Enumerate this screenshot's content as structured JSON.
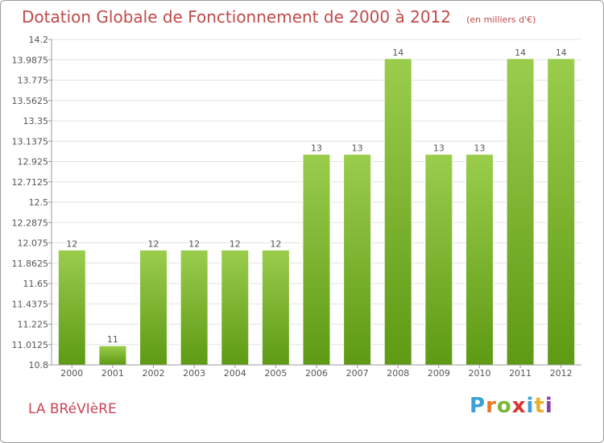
{
  "header": {
    "title": "Dotation Globale de Fonctionnement de 2000 à 2012",
    "subtitle": "(en milliers d'€)"
  },
  "footer": {
    "commune": "LA BRéVIèRE",
    "brand": [
      "P",
      "r",
      "o",
      "x",
      "i",
      "t",
      "i"
    ],
    "brand_colors": [
      "#3aa0d8",
      "#e8792a",
      "#7ab63a",
      "#d8342f",
      "#3aa0d8",
      "#e8b12a",
      "#8a3fa6"
    ]
  },
  "colors": {
    "bar_top": "#9acd4c",
    "bar_bottom": "#5e9a14",
    "title": "#c04a4a",
    "grid": "#e3e3e3"
  },
  "chart_data": {
    "type": "bar",
    "title": "Dotation Globale de Fonctionnement de 2000 à 2012",
    "subtitle": "(en milliers d'€)",
    "xlabel": "",
    "ylabel": "",
    "categories": [
      "2000",
      "2001",
      "2002",
      "2003",
      "2004",
      "2005",
      "2006",
      "2007",
      "2008",
      "2009",
      "2010",
      "2011",
      "2012"
    ],
    "values": [
      12,
      11,
      12,
      12,
      12,
      12,
      13,
      13,
      14,
      13,
      13,
      14,
      14
    ],
    "value_labels": [
      "12",
      "11",
      "12",
      "12",
      "12",
      "12",
      "13",
      "13",
      "14",
      "13",
      "13",
      "14",
      "14"
    ],
    "ylim": [
      10.8,
      14.2
    ],
    "yticks": [
      10.8,
      11.0125,
      11.225,
      11.4375,
      11.65,
      11.8625,
      12.075,
      12.2875,
      12.5,
      12.7125,
      12.925,
      13.1375,
      13.35,
      13.5625,
      13.775,
      13.9875,
      14.2
    ],
    "ytick_labels": [
      "10.8",
      "11.0125",
      "11.225",
      "11.4375",
      "11.65",
      "11.8625",
      "12.075",
      "12.2875",
      "12.5",
      "12.7125",
      "12.925",
      "13.1375",
      "13.35",
      "13.5625",
      "13.775",
      "13.9875",
      "14.2"
    ],
    "grid": true,
    "legend": "none"
  }
}
